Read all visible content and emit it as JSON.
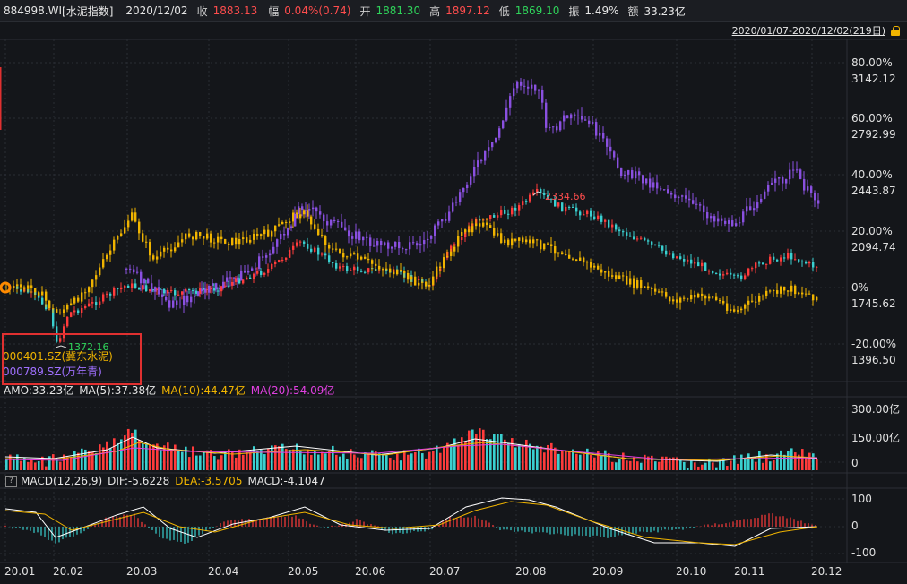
{
  "header": {
    "code": "884998.WI",
    "name": "[水泥指数]",
    "date": "2020/12/02",
    "close_label": "收",
    "close_value": "1883.13",
    "change_label": "幅",
    "change_value": "0.04%(0.74)",
    "open_label": "开",
    "open_value": "1881.30",
    "high_label": "高",
    "high_value": "1897.12",
    "low_label": "低",
    "low_value": "1869.10",
    "amp_label": "振",
    "amp_value": "1.49%",
    "amount_label": "额",
    "amount_value": "33.23亿"
  },
  "range": {
    "text": "2020/01/07-2020/12/02(219日)"
  },
  "main_axis": {
    "labels": [
      {
        "pct": "80.00%",
        "price": "3142.12"
      },
      {
        "pct": "60.00%",
        "price": "2792.99"
      },
      {
        "pct": "40.00%",
        "price": "2443.87"
      },
      {
        "pct": "20.00%",
        "price": "2094.74"
      },
      {
        "pct": "0%",
        "price": "1745.62"
      },
      {
        "pct": "-20.00%",
        "price": "1396.50"
      }
    ]
  },
  "annotations": {
    "high": "2334.66",
    "low": "1372.16"
  },
  "legend": {
    "s1": "000401.SZ(冀东水泥)",
    "s2": "000789.SZ(万年青)"
  },
  "volume_panel": {
    "amo": "AMO:33.23亿",
    "ma5": "MA(5):37.38亿",
    "ma10": "MA(10):44.47亿",
    "ma20": "MA(20):54.09亿",
    "y_labels": [
      "300.00亿",
      "150.00亿",
      "0"
    ]
  },
  "macd_panel": {
    "q": "?",
    "title": "MACD(12,26,9)",
    "dif": "DIF:-5.6228",
    "dea": "DEA:-3.5705",
    "macd": "MACD:-4.1047",
    "y_labels": [
      "100",
      "0",
      "-100"
    ]
  },
  "x_axis": [
    "20.01",
    "20.02",
    "20.03",
    "20.04",
    "20.05",
    "20.06",
    "20.07",
    "20.08",
    "20.09",
    "20.10",
    "20.11",
    "20.12"
  ],
  "colors": {
    "up": "#ff3b3b",
    "down": "#3ad0d0",
    "series1": "#f0b400",
    "series2": "#8a50e0",
    "ma5": "#ffffff",
    "ma10": "#f0b400",
    "ma20": "#e040e0"
  }
}
